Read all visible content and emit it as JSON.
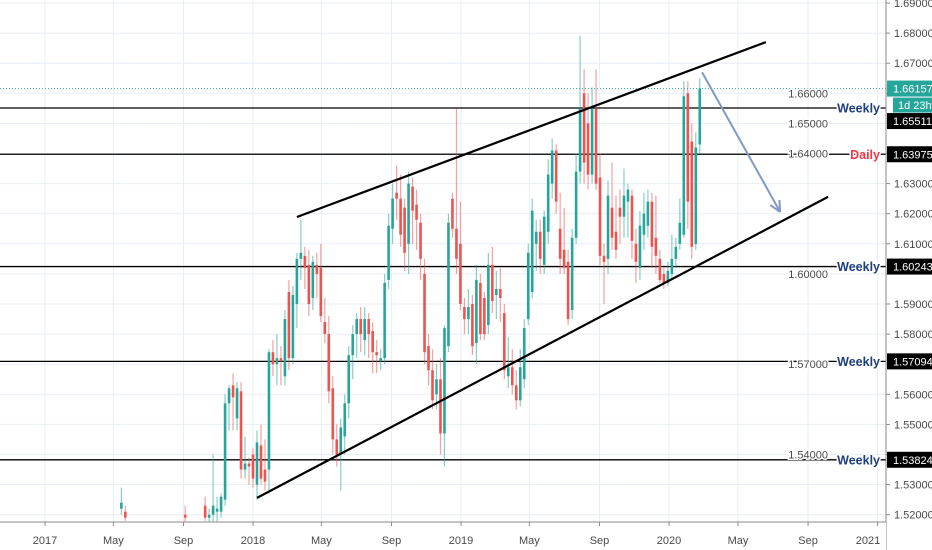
{
  "chart_data": {
    "type": "candlestick",
    "title": "",
    "colors": {
      "up": "#26a69a",
      "down": "#ef5350",
      "level_weekly": "#1c3f7c",
      "level_daily": "#f23645",
      "arrow": "#8099c4",
      "trendline": "#000000",
      "grid": "#e8eef5"
    },
    "y_axis": {
      "range": [
        1.515,
        1.69
      ],
      "ticks": [
        "1.52000",
        "1.53000",
        "1.54000",
        "1.55000",
        "1.56000",
        "1.57000",
        "1.58000",
        "1.59000",
        "1.60000",
        "1.61000",
        "1.62000",
        "1.63000",
        "1.64000",
        "1.65000",
        "1.66000",
        "1.67000",
        "1.68000",
        "1.69000"
      ],
      "side": "right"
    },
    "x_axis": {
      "range": [
        "2016-11-01",
        "2021-02-01"
      ],
      "ticks": [
        {
          "date": "2017-01-01",
          "label": "2017"
        },
        {
          "date": "2017-05-01",
          "label": "May"
        },
        {
          "date": "2017-09-01",
          "label": "Sep"
        },
        {
          "date": "2018-01-01",
          "label": "2018"
        },
        {
          "date": "2018-05-01",
          "label": "May"
        },
        {
          "date": "2018-09-01",
          "label": "Sep"
        },
        {
          "date": "2019-01-01",
          "label": "2019"
        },
        {
          "date": "2019-05-01",
          "label": "May"
        },
        {
          "date": "2019-09-01",
          "label": "Sep"
        },
        {
          "date": "2020-01-01",
          "label": "2020"
        },
        {
          "date": "2020-05-01",
          "label": "May"
        },
        {
          "date": "2020-09-01",
          "label": "Sep"
        },
        {
          "date": "2021-01-01",
          "label": "2021"
        }
      ]
    },
    "grid": true,
    "candles": [
      [
        "2017-05-15",
        1.522,
        1.529,
        1.52,
        1.524
      ],
      [
        "2017-05-22",
        1.521,
        1.523,
        1.518,
        1.519
      ],
      [
        "2017-09-04",
        1.52,
        1.523,
        1.517,
        1.519
      ],
      [
        "2017-10-09",
        1.523,
        1.526,
        1.518,
        1.519
      ],
      [
        "2017-10-16",
        1.519,
        1.522,
        1.516,
        1.52
      ],
      [
        "2017-10-23",
        1.52,
        1.54,
        1.517,
        1.523
      ],
      [
        "2017-10-30",
        1.521,
        1.526,
        1.517,
        1.522
      ],
      [
        "2017-11-06",
        1.521,
        1.527,
        1.519,
        1.526
      ],
      [
        "2017-11-13",
        1.525,
        1.56,
        1.523,
        1.557
      ],
      [
        "2017-11-20",
        1.557,
        1.563,
        1.548,
        1.562
      ],
      [
        "2017-11-27",
        1.563,
        1.567,
        1.548,
        1.559
      ],
      [
        "2017-12-04",
        1.552,
        1.564,
        1.548,
        1.562
      ],
      [
        "2017-12-11",
        1.561,
        1.564,
        1.532,
        1.535
      ],
      [
        "2017-12-18",
        1.535,
        1.546,
        1.532,
        1.537
      ],
      [
        "2017-12-25",
        1.537,
        1.539,
        1.53,
        1.536
      ],
      [
        "2018-01-01",
        1.54,
        1.542,
        1.529,
        1.532
      ],
      [
        "2018-01-08",
        1.53,
        1.548,
        1.525,
        1.544
      ],
      [
        "2018-01-15",
        1.543,
        1.55,
        1.53,
        1.532
      ],
      [
        "2018-01-22",
        1.535,
        1.545,
        1.528,
        1.531
      ],
      [
        "2018-01-29",
        1.535,
        1.575,
        1.527,
        1.574
      ],
      [
        "2018-02-05",
        1.574,
        1.578,
        1.566,
        1.57
      ],
      [
        "2018-02-12",
        1.57,
        1.58,
        1.563,
        1.572
      ],
      [
        "2018-02-19",
        1.572,
        1.576,
        1.563,
        1.571
      ],
      [
        "2018-02-26",
        1.566,
        1.588,
        1.563,
        1.585
      ],
      [
        "2018-03-05",
        1.594,
        1.598,
        1.568,
        1.572
      ],
      [
        "2018-03-12",
        1.572,
        1.596,
        1.57,
        1.593
      ],
      [
        "2018-03-19",
        1.59,
        1.607,
        1.582,
        1.605
      ],
      [
        "2018-03-26",
        1.605,
        1.618,
        1.598,
        1.607
      ],
      [
        "2018-04-02",
        1.606,
        1.609,
        1.595,
        1.602
      ],
      [
        "2018-04-09",
        1.603,
        1.608,
        1.586,
        1.59
      ],
      [
        "2018-04-16",
        1.592,
        1.606,
        1.588,
        1.604
      ],
      [
        "2018-04-23",
        1.603,
        1.607,
        1.592,
        1.6
      ],
      [
        "2018-04-30",
        1.602,
        1.61,
        1.584,
        1.586
      ],
      [
        "2018-05-07",
        1.584,
        1.592,
        1.577,
        1.58
      ],
      [
        "2018-05-14",
        1.58,
        1.586,
        1.557,
        1.561
      ],
      [
        "2018-05-21",
        1.562,
        1.566,
        1.54,
        1.545
      ],
      [
        "2018-05-28",
        1.545,
        1.55,
        1.536,
        1.54
      ],
      [
        "2018-06-04",
        1.54,
        1.552,
        1.528,
        1.549
      ],
      [
        "2018-06-11",
        1.546,
        1.56,
        1.54,
        1.557
      ],
      [
        "2018-06-18",
        1.557,
        1.576,
        1.552,
        1.573
      ],
      [
        "2018-06-25",
        1.573,
        1.583,
        1.565,
        1.58
      ],
      [
        "2018-07-02",
        1.58,
        1.587,
        1.572,
        1.585
      ],
      [
        "2018-07-09",
        1.585,
        1.589,
        1.574,
        1.58
      ],
      [
        "2018-07-16",
        1.578,
        1.589,
        1.573,
        1.585
      ],
      [
        "2018-07-23",
        1.585,
        1.587,
        1.572,
        1.58
      ],
      [
        "2018-07-30",
        1.581,
        1.584,
        1.567,
        1.574
      ],
      [
        "2018-08-06",
        1.574,
        1.578,
        1.567,
        1.573
      ],
      [
        "2018-08-13",
        1.571,
        1.575,
        1.568,
        1.572
      ],
      [
        "2018-08-20",
        1.572,
        1.6,
        1.57,
        1.597
      ],
      [
        "2018-08-27",
        1.598,
        1.62,
        1.595,
        1.616
      ],
      [
        "2018-09-03",
        1.615,
        1.63,
        1.61,
        1.625
      ],
      [
        "2018-09-10",
        1.627,
        1.636,
        1.618,
        1.625
      ],
      [
        "2018-09-17",
        1.625,
        1.633,
        1.609,
        1.613
      ],
      [
        "2018-09-24",
        1.622,
        1.625,
        1.601,
        1.607
      ],
      [
        "2018-10-01",
        1.61,
        1.634,
        1.6,
        1.63
      ],
      [
        "2018-10-08",
        1.629,
        1.632,
        1.61,
        1.621
      ],
      [
        "2018-10-15",
        1.623,
        1.628,
        1.608,
        1.618
      ],
      [
        "2018-10-22",
        1.617,
        1.62,
        1.598,
        1.605
      ],
      [
        "2018-10-29",
        1.6,
        1.605,
        1.57,
        1.574
      ],
      [
        "2018-11-05",
        1.576,
        1.58,
        1.563,
        1.568
      ],
      [
        "2018-11-12",
        1.568,
        1.575,
        1.555,
        1.558
      ],
      [
        "2018-11-19",
        1.56,
        1.57,
        1.555,
        1.565
      ],
      [
        "2018-11-26",
        1.565,
        1.572,
        1.54,
        1.547
      ],
      [
        "2018-12-03",
        1.547,
        1.583,
        1.536,
        1.582
      ],
      [
        "2018-12-10",
        1.576,
        1.62,
        1.574,
        1.617
      ],
      [
        "2018-12-17",
        1.625,
        1.627,
        1.612,
        1.615
      ],
      [
        "2018-12-24",
        1.615,
        1.655,
        1.6,
        1.605
      ],
      [
        "2018-12-31",
        1.61,
        1.624,
        1.588,
        1.59
      ],
      [
        "2019-01-07",
        1.589,
        1.592,
        1.58,
        1.585
      ],
      [
        "2019-01-14",
        1.585,
        1.595,
        1.58,
        1.589
      ],
      [
        "2019-01-21",
        1.59,
        1.593,
        1.573,
        1.576
      ],
      [
        "2019-01-28",
        1.577,
        1.603,
        1.57,
        1.598
      ],
      [
        "2019-02-04",
        1.597,
        1.6,
        1.578,
        1.58
      ],
      [
        "2019-02-11",
        1.592,
        1.594,
        1.578,
        1.58
      ],
      [
        "2019-02-18",
        1.583,
        1.607,
        1.58,
        1.603
      ],
      [
        "2019-02-25",
        1.603,
        1.609,
        1.587,
        1.591
      ],
      [
        "2019-03-04",
        1.593,
        1.601,
        1.585,
        1.595
      ],
      [
        "2019-03-11",
        1.595,
        1.602,
        1.584,
        1.592
      ],
      [
        "2019-03-18",
        1.587,
        1.59,
        1.565,
        1.568
      ],
      [
        "2019-03-25",
        1.566,
        1.579,
        1.562,
        1.569
      ],
      [
        "2019-04-01",
        1.569,
        1.575,
        1.56,
        1.563
      ],
      [
        "2019-04-08",
        1.563,
        1.568,
        1.555,
        1.558
      ],
      [
        "2019-04-15",
        1.558,
        1.575,
        1.556,
        1.569
      ],
      [
        "2019-04-22",
        1.565,
        1.585,
        1.562,
        1.582
      ],
      [
        "2019-04-29",
        1.585,
        1.61,
        1.583,
        1.607
      ],
      [
        "2019-05-06",
        1.594,
        1.625,
        1.592,
        1.621
      ],
      [
        "2019-05-13",
        1.61,
        1.618,
        1.601,
        1.614
      ],
      [
        "2019-05-20",
        1.614,
        1.618,
        1.6,
        1.605
      ],
      [
        "2019-05-27",
        1.603,
        1.621,
        1.6,
        1.619
      ],
      [
        "2019-06-03",
        1.614,
        1.638,
        1.61,
        1.633
      ],
      [
        "2019-06-10",
        1.63,
        1.645,
        1.625,
        1.641
      ],
      [
        "2019-06-17",
        1.641,
        1.643,
        1.62,
        1.624
      ],
      [
        "2019-06-24",
        1.615,
        1.627,
        1.6,
        1.605
      ],
      [
        "2019-07-01",
        1.608,
        1.622,
        1.6,
        1.602
      ],
      [
        "2019-07-08",
        1.604,
        1.608,
        1.583,
        1.585
      ],
      [
        "2019-07-15",
        1.588,
        1.615,
        1.585,
        1.612
      ],
      [
        "2019-07-22",
        1.612,
        1.64,
        1.61,
        1.634
      ],
      [
        "2019-07-29",
        1.634,
        1.679,
        1.63,
        1.655
      ],
      [
        "2019-08-05",
        1.66,
        1.668,
        1.63,
        1.637
      ],
      [
        "2019-08-12",
        1.65,
        1.66,
        1.628,
        1.633
      ],
      [
        "2019-08-19",
        1.633,
        1.662,
        1.63,
        1.655
      ],
      [
        "2019-08-26",
        1.655,
        1.668,
        1.628,
        1.63
      ],
      [
        "2019-09-02",
        1.632,
        1.64,
        1.603,
        1.606
      ],
      [
        "2019-09-09",
        1.606,
        1.61,
        1.59,
        1.604
      ],
      [
        "2019-09-16",
        1.605,
        1.631,
        1.6,
        1.626
      ],
      [
        "2019-09-23",
        1.622,
        1.637,
        1.608,
        1.612
      ],
      [
        "2019-09-30",
        1.614,
        1.626,
        1.605,
        1.608
      ],
      [
        "2019-10-07",
        1.622,
        1.628,
        1.61,
        1.619
      ],
      [
        "2019-10-14",
        1.619,
        1.635,
        1.612,
        1.626
      ],
      [
        "2019-10-21",
        1.624,
        1.63,
        1.612,
        1.628
      ],
      [
        "2019-10-28",
        1.626,
        1.628,
        1.605,
        1.611
      ],
      [
        "2019-11-04",
        1.61,
        1.615,
        1.597,
        1.604
      ],
      [
        "2019-11-11",
        1.602,
        1.621,
        1.598,
        1.616
      ],
      [
        "2019-11-18",
        1.613,
        1.627,
        1.608,
        1.62
      ],
      [
        "2019-11-25",
        1.616,
        1.628,
        1.612,
        1.624
      ],
      [
        "2019-12-02",
        1.624,
        1.627,
        1.602,
        1.609
      ],
      [
        "2019-12-09",
        1.612,
        1.626,
        1.6,
        1.606
      ],
      [
        "2019-12-16",
        1.605,
        1.608,
        1.597,
        1.598
      ],
      [
        "2019-12-23",
        1.6,
        1.602,
        1.595,
        1.597
      ],
      [
        "2019-12-30",
        1.597,
        1.604,
        1.596,
        1.601
      ],
      [
        "2020-01-06",
        1.6,
        1.613,
        1.598,
        1.605
      ],
      [
        "2020-01-13",
        1.605,
        1.612,
        1.602,
        1.609
      ],
      [
        "2020-01-20",
        1.61,
        1.625,
        1.608,
        1.617
      ],
      [
        "2020-01-27",
        1.613,
        1.664,
        1.612,
        1.659
      ],
      [
        "2020-02-03",
        1.66,
        1.664,
        1.615,
        1.624
      ],
      [
        "2020-02-10",
        1.644,
        1.65,
        1.605,
        1.609
      ],
      [
        "2020-02-17",
        1.61,
        1.647,
        1.608,
        1.642
      ],
      [
        "2020-02-24",
        1.643,
        1.665,
        1.64,
        1.66157
      ]
    ],
    "levels": [
      {
        "price": 1.65511,
        "label": "Weekly",
        "value": "1.65511",
        "kind": "weekly"
      },
      {
        "price": 1.63975,
        "label": "Daily",
        "value": "1.63975",
        "kind": "daily"
      },
      {
        "price": 1.60243,
        "label": "Weekly",
        "value": "1.60243",
        "kind": "weekly"
      },
      {
        "price": 1.57094,
        "label": "Weekly",
        "value": "1.57094",
        "kind": "weekly"
      },
      {
        "price": 1.53824,
        "label": "Weekly",
        "value": "1.53824",
        "kind": "weekly"
      }
    ],
    "trendlines": [
      {
        "from": [
          "2018-03-19",
          1.6189
        ],
        "to": [
          "2020-06-19",
          1.677
        ]
      },
      {
        "from": [
          "2018-01-08",
          1.5256
        ],
        "to": [
          "2020-10-06",
          1.6256
        ]
      }
    ],
    "arrow": {
      "from": [
        "2020-02-28",
        1.667
      ],
      "to": [
        "2020-07-14",
        1.6206
      ]
    },
    "last_price": {
      "price": 1.66157,
      "value": "1.66157",
      "countdown": "1d 23h"
    }
  }
}
